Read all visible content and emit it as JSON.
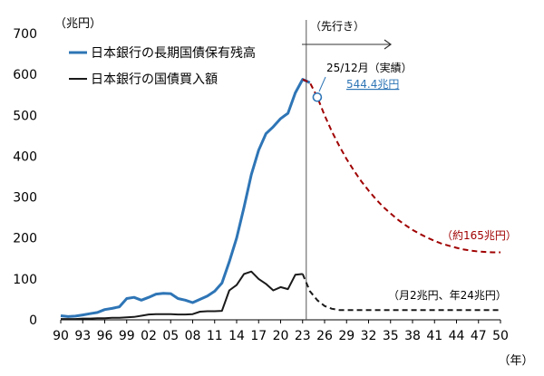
{
  "chart_data": {
    "type": "line",
    "ylabel": "（兆円）",
    "xlabel": "（年）",
    "ylim": [
      0,
      700
    ],
    "yticks": [
      0,
      100,
      200,
      300,
      400,
      500,
      600,
      700
    ],
    "xlim": [
      1990,
      2050
    ],
    "xticks": [
      1990,
      1993,
      1996,
      1999,
      2002,
      2005,
      2008,
      2011,
      2014,
      2017,
      2020,
      2023,
      2026,
      2029,
      2032,
      2035,
      2038,
      2041,
      2044,
      2047,
      2050
    ],
    "xtick_labels": [
      "90",
      "93",
      "96",
      "99",
      "02",
      "05",
      "08",
      "11",
      "14",
      "17",
      "20",
      "23",
      "26",
      "29",
      "32",
      "35",
      "38",
      "41",
      "44",
      "47",
      "50"
    ],
    "grid": false,
    "legend_position": "top-left",
    "forecast_divider_x": 2023.5,
    "forecast_label": "（先行き）",
    "series": [
      {
        "name": "日本銀行の長期国債保有残高",
        "color": "#2e75b6",
        "x": [
          1990,
          1991,
          1992,
          1993,
          1994,
          1995,
          1996,
          1997,
          1998,
          1999,
          2000,
          2001,
          2002,
          2003,
          2004,
          2005,
          2006,
          2007,
          2008,
          2009,
          2010,
          2011,
          2012,
          2013,
          2014,
          2015,
          2016,
          2017,
          2018,
          2019,
          2020,
          2021,
          2022,
          2023,
          2024
        ],
        "values": [
          10,
          8,
          9,
          12,
          15,
          18,
          25,
          28,
          32,
          52,
          55,
          48,
          55,
          63,
          65,
          64,
          52,
          48,
          42,
          50,
          58,
          70,
          90,
          142,
          200,
          275,
          355,
          415,
          455,
          472,
          492,
          505,
          555,
          588,
          580
        ]
      },
      {
        "name": "日本銀行の国債買入額",
        "color": "#1a1a1a",
        "x": [
          1990,
          1991,
          1992,
          1993,
          1994,
          1995,
          1996,
          1997,
          1998,
          1999,
          2000,
          2001,
          2002,
          2003,
          2004,
          2005,
          2006,
          2007,
          2008,
          2009,
          2010,
          2011,
          2012,
          2013,
          2014,
          2015,
          2016,
          2017,
          2018,
          2019,
          2020,
          2021,
          2022,
          2023
        ],
        "values": [
          2,
          2,
          2,
          3,
          3,
          4,
          4,
          5,
          5,
          6,
          7,
          10,
          13,
          14,
          14,
          14,
          13,
          13,
          14,
          20,
          21,
          21,
          22,
          72,
          85,
          112,
          118,
          100,
          88,
          72,
          80,
          75,
          110,
          112
        ]
      },
      {
        "name": "",
        "color": "#a00000",
        "dashed": true,
        "x": [
          2023,
          2024,
          2025,
          2026,
          2027,
          2028,
          2029,
          2030,
          2031,
          2032,
          2033,
          2034,
          2035,
          2036,
          2037,
          2038,
          2039,
          2040,
          2041,
          2042,
          2043,
          2044,
          2045,
          2046,
          2047,
          2048,
          2049,
          2050
        ],
        "values": [
          588,
          580,
          545,
          500,
          460,
          425,
          393,
          365,
          339,
          316,
          295,
          276,
          260,
          245,
          232,
          220,
          210,
          201,
          193,
          186,
          181,
          176,
          172,
          169,
          167,
          166,
          165,
          165
        ]
      },
      {
        "name": "",
        "color": "#1a1a1a",
        "dashed": true,
        "x": [
          2023,
          2024,
          2025,
          2026,
          2027,
          2028,
          2030,
          2035,
          2040,
          2045,
          2050
        ],
        "values": [
          112,
          70,
          48,
          34,
          27,
          24,
          24,
          24,
          24,
          24,
          24
        ]
      }
    ],
    "marker": {
      "x": 2025,
      "y": 544.4
    },
    "annotations": {
      "actual_label": "25/12月（実績）",
      "actual_value": "544.4兆円",
      "end_value": "（約165兆円）",
      "purchase_label": "（月2兆円、年24兆円）"
    }
  }
}
